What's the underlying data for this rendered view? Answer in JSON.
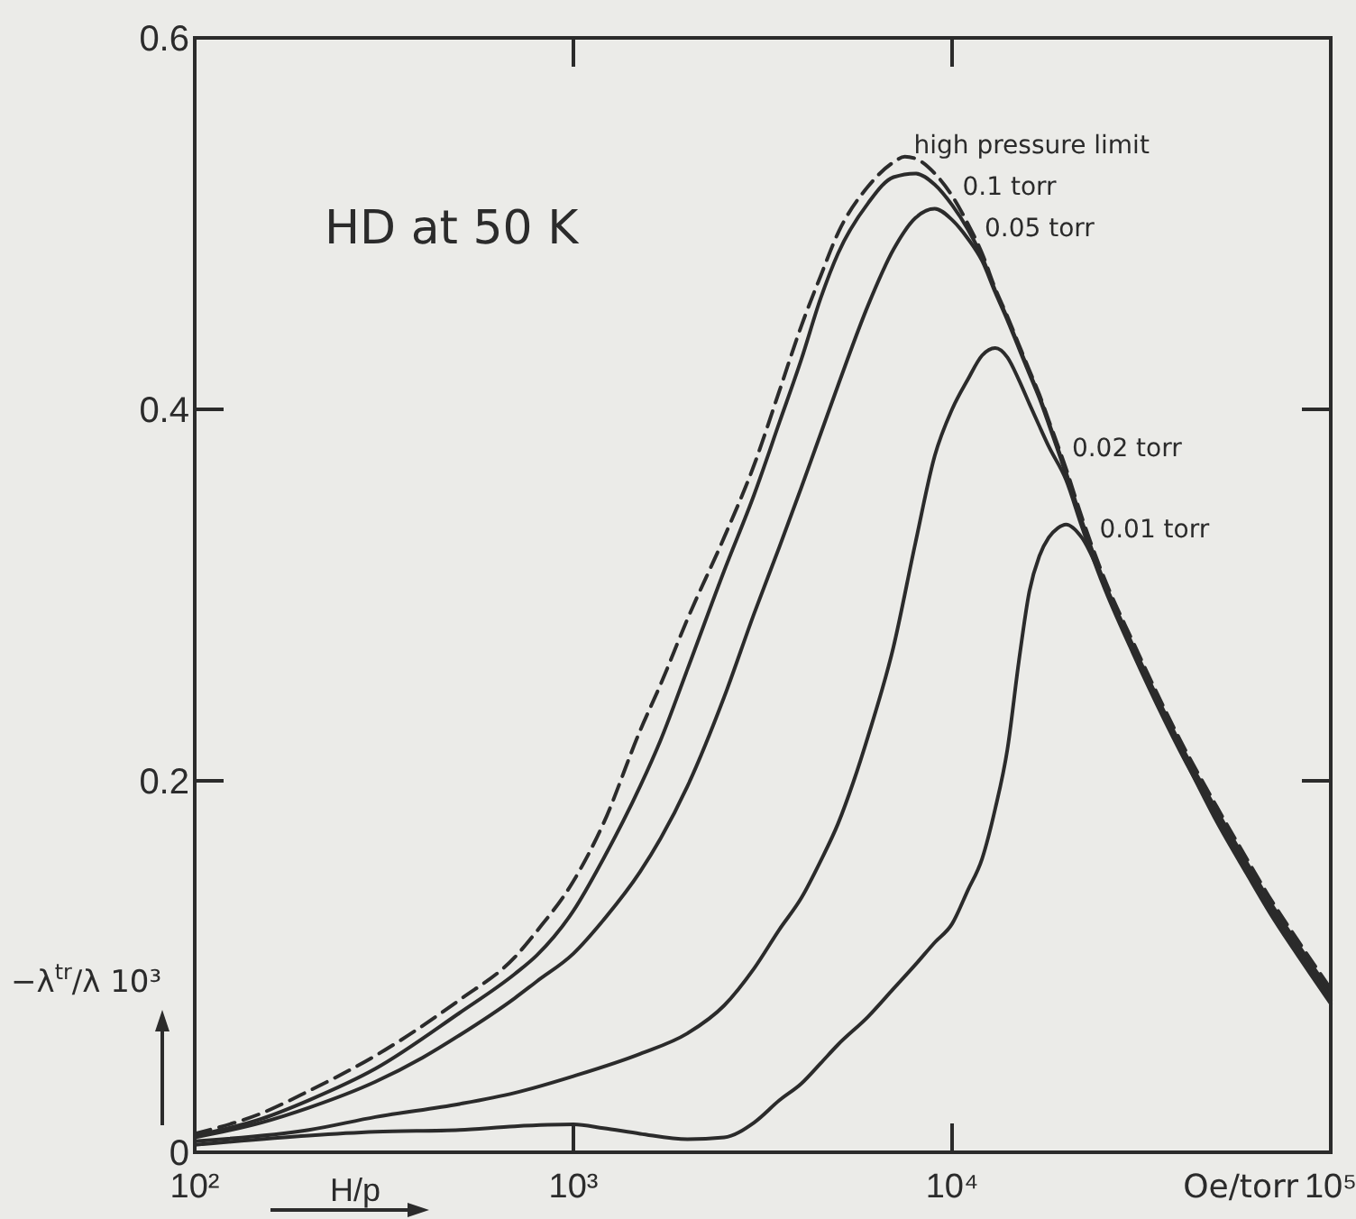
{
  "chart_data": {
    "type": "line",
    "title": "HD at 50 K",
    "xlabel": "H/p",
    "ylabel": "−λ$^{tr}$/λ 10³",
    "annotations": [
      "Oe/torr"
    ],
    "log": "x",
    "xlim": [
      100,
      100000
    ],
    "ylim": [
      0,
      0.6
    ],
    "xticks": [
      {
        "value": 100,
        "label": "10²"
      },
      {
        "value": 1000,
        "label": "10³"
      },
      {
        "value": 10000,
        "label": "10⁴"
      },
      {
        "value": 100000,
        "label": "10⁵"
      }
    ],
    "yticks": [
      0,
      0.2,
      0.4,
      0.6
    ],
    "series": [
      {
        "name": "high pressure limit",
        "color": "#2b2b2b",
        "line_style": "dashed",
        "x": [
          100,
          150,
          200,
          300,
          500,
          700,
          800,
          1000,
          1200,
          1500,
          1700,
          2000,
          2500,
          3000,
          3500,
          4000,
          4500,
          5000,
          6000,
          7000,
          7500,
          8000,
          9000,
          10000,
          11000,
          12000,
          13000,
          14000,
          15000,
          16000,
          17000,
          18000,
          20000,
          22000,
          25000,
          30000,
          40000,
          50000,
          60000,
          70000,
          80000,
          100000
        ],
        "values": [
          0.01,
          0.021,
          0.033,
          0.052,
          0.082,
          0.105,
          0.119,
          0.146,
          0.177,
          0.227,
          0.252,
          0.287,
          0.331,
          0.37,
          0.41,
          0.445,
          0.472,
          0.495,
          0.52,
          0.533,
          0.536,
          0.535,
          0.527,
          0.515,
          0.5,
          0.484,
          0.465,
          0.45,
          0.435,
          0.421,
          0.408,
          0.394,
          0.368,
          0.342,
          0.311,
          0.275,
          0.222,
          0.186,
          0.158,
          0.135,
          0.117,
          0.088
        ]
      },
      {
        "name": "0.1 torr",
        "color": "#2b2b2b",
        "x": [
          100,
          150,
          200,
          300,
          500,
          700,
          800,
          1000,
          1200,
          1500,
          1700,
          2000,
          2500,
          3000,
          3500,
          4000,
          4500,
          5000,
          6000,
          7000,
          8000,
          9000,
          10000,
          11000,
          12000,
          13000,
          14000,
          15000,
          16000,
          17000,
          18000,
          20000,
          22000,
          25000,
          30000,
          40000,
          50000,
          60000,
          70000,
          80000,
          100000
        ],
        "values": [
          0.009,
          0.018,
          0.028,
          0.045,
          0.075,
          0.096,
          0.106,
          0.13,
          0.158,
          0.197,
          0.222,
          0.26,
          0.313,
          0.354,
          0.393,
          0.427,
          0.46,
          0.484,
          0.511,
          0.525,
          0.527,
          0.521,
          0.51,
          0.497,
          0.482,
          0.464,
          0.449,
          0.434,
          0.42,
          0.407,
          0.393,
          0.366,
          0.34,
          0.309,
          0.273,
          0.22,
          0.184,
          0.156,
          0.133,
          0.115,
          0.086
        ]
      },
      {
        "name": "0.05 torr",
        "color": "#2b2b2b",
        "x": [
          100,
          150,
          200,
          300,
          400,
          500,
          700,
          800,
          1000,
          1200,
          1500,
          1700,
          2000,
          2500,
          3000,
          3500,
          4000,
          4500,
          5000,
          6000,
          7000,
          8000,
          9000,
          10000,
          11000,
          12000,
          13000,
          14000,
          15000,
          16000,
          17000,
          18000,
          20000,
          22000,
          25000,
          30000,
          40000,
          50000,
          60000,
          70000,
          80000,
          100000
        ],
        "values": [
          0.008,
          0.016,
          0.024,
          0.038,
          0.051,
          0.063,
          0.083,
          0.092,
          0.107,
          0.125,
          0.151,
          0.169,
          0.197,
          0.245,
          0.29,
          0.326,
          0.358,
          0.387,
          0.413,
          0.456,
          0.486,
          0.503,
          0.508,
          0.502,
          0.492,
          0.48,
          0.463,
          0.448,
          0.433,
          0.419,
          0.406,
          0.392,
          0.365,
          0.339,
          0.308,
          0.271,
          0.218,
          0.182,
          0.154,
          0.131,
          0.113,
          0.084
        ]
      },
      {
        "name": "0.02 torr",
        "color": "#2b2b2b",
        "x": [
          100,
          200,
          300,
          500,
          700,
          1000,
          1500,
          2000,
          2500,
          3000,
          3500,
          4000,
          4500,
          5000,
          5500,
          6000,
          7000,
          8000,
          9000,
          10000,
          11000,
          12000,
          13000,
          14000,
          15000,
          16000,
          17000,
          18000,
          20000,
          22000,
          25000,
          30000,
          40000,
          50000,
          60000,
          70000,
          80000,
          100000
        ],
        "values": [
          0.006,
          0.012,
          0.019,
          0.026,
          0.032,
          0.041,
          0.053,
          0.064,
          0.079,
          0.099,
          0.12,
          0.137,
          0.157,
          0.177,
          0.2,
          0.224,
          0.272,
          0.328,
          0.375,
          0.4,
          0.416,
          0.429,
          0.433,
          0.428,
          0.416,
          0.403,
          0.391,
          0.38,
          0.362,
          0.337,
          0.306,
          0.269,
          0.216,
          0.18,
          0.152,
          0.129,
          0.111,
          0.082
        ]
      },
      {
        "name": "0.01 torr",
        "color": "#2b2b2b",
        "x": [
          100,
          200,
          300,
          500,
          700,
          1000,
          1200,
          1500,
          2000,
          2500,
          3000,
          3500,
          4000,
          4500,
          5000,
          6000,
          7000,
          8000,
          9000,
          10000,
          11000,
          12000,
          13000,
          14000,
          15000,
          16000,
          17000,
          18000,
          19000,
          20000,
          22000,
          25000,
          30000,
          40000,
          50000,
          60000,
          70000,
          80000,
          100000
        ],
        "values": [
          0.004,
          0.009,
          0.011,
          0.012,
          0.014,
          0.015,
          0.013,
          0.01,
          0.007,
          0.008,
          0.016,
          0.028,
          0.037,
          0.048,
          0.058,
          0.073,
          0.088,
          0.101,
          0.113,
          0.123,
          0.141,
          0.158,
          0.185,
          0.217,
          0.264,
          0.302,
          0.321,
          0.331,
          0.336,
          0.338,
          0.331,
          0.308,
          0.27,
          0.217,
          0.178,
          0.15,
          0.127,
          0.109,
          0.08
        ]
      }
    ]
  }
}
